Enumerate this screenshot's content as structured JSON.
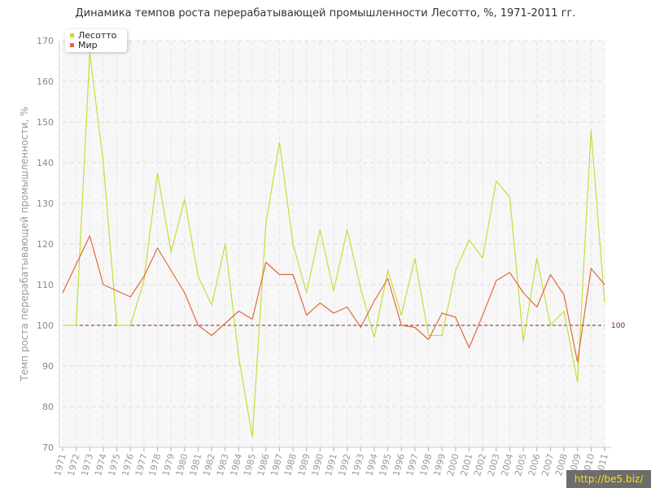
{
  "chart_data": {
    "type": "line",
    "title": "Динамика темпов роста перерабатывающей промышленности Лесотто, %, 1971-2011 гг.",
    "ylabel": "Темп роста перерабатывающей промышленности, %",
    "xlabel": "",
    "ylim": [
      70,
      170
    ],
    "yticks": [
      70,
      80,
      90,
      100,
      110,
      120,
      130,
      140,
      150,
      160,
      170
    ],
    "x": [
      "1971",
      "1972",
      "1973",
      "1974",
      "1975",
      "1976",
      "1977",
      "1978",
      "1979",
      "1980",
      "1981",
      "1982",
      "1983",
      "1984",
      "1985",
      "1986",
      "1987",
      "1988",
      "1989",
      "1990",
      "1991",
      "1992",
      "1993",
      "1994",
      "1995",
      "1996",
      "1997",
      "1998",
      "1999",
      "2000",
      "2001",
      "2002",
      "2003",
      "2004",
      "2005",
      "2006",
      "2007",
      "2008",
      "2009",
      "2010",
      "2011"
    ],
    "series": [
      {
        "name": "Лесотто",
        "color": "#c6dd3a",
        "values": [
          100,
          100,
          167,
          140,
          100,
          100,
          111,
          137.5,
          118,
          131,
          112,
          105,
          120,
          92,
          72.5,
          125,
          145,
          120,
          108,
          123.5,
          108.5,
          123.5,
          109,
          97,
          113.5,
          102.5,
          116.5,
          97.5,
          97.5,
          113.5,
          121,
          116.5,
          135.5,
          131.5,
          96,
          116.5,
          100,
          103.5,
          86,
          148,
          105.5
        ]
      },
      {
        "name": "Мир",
        "color": "#e2693c",
        "values": [
          108,
          115,
          122,
          110,
          108.5,
          107,
          112,
          119,
          113.5,
          108,
          100,
          97.5,
          100.5,
          103.5,
          101.5,
          115.5,
          112.5,
          112.5,
          102.5,
          105.5,
          103,
          104.5,
          99.5,
          106,
          111.5,
          100,
          99.5,
          96.5,
          103,
          102,
          94.5,
          102.5,
          111,
          113,
          108,
          104.5,
          112.5,
          107.5,
          91,
          114,
          110
        ]
      }
    ],
    "reference_line": {
      "value": 100,
      "label": "100",
      "color": "#8b1a1a"
    },
    "grid": true,
    "legend_position": "top-left"
  },
  "watermark": "http://be5.biz/"
}
